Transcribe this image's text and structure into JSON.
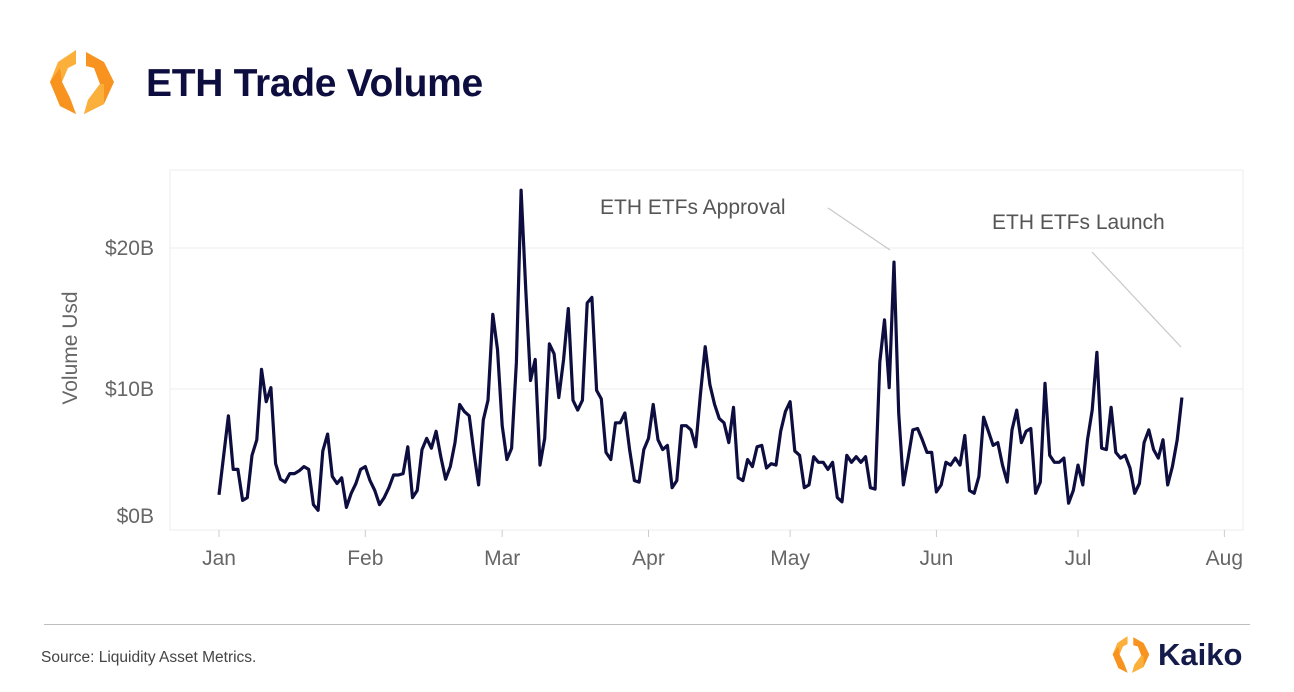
{
  "header": {
    "title": "ETH Trade Volume",
    "logo": "kaiko-hexagon-logo"
  },
  "footer": {
    "source": "Source: Liquidity Asset Metrics.",
    "brand": "Kaiko"
  },
  "colors": {
    "line": "#0d0d3f",
    "title": "#0d0d3f",
    "logo_orange": "#f7931e",
    "logo_amber": "#fbb03b",
    "grid": "#e6e6e6",
    "axis_text": "#666666"
  },
  "chart_data": {
    "type": "line",
    "title": "ETH Trade Volume",
    "xlabel": "",
    "ylabel": "Volume Usd",
    "ylim": [
      0,
      25.5
    ],
    "y_unit": "billion USD",
    "y_ticks": [
      {
        "value": 0,
        "label": "$0B"
      },
      {
        "value": 10,
        "label": "$10B"
      },
      {
        "value": 20,
        "label": "$20B"
      }
    ],
    "x_ticks": [
      "Jan",
      "Feb",
      "Mar",
      "Apr",
      "May",
      "Jun",
      "Jul",
      "Aug"
    ],
    "grid": "horizontal",
    "legend": "none",
    "series": [
      {
        "values_by_month": {
          "Jan": [
            2.5,
            5.3,
            8.1,
            4.3,
            4.3,
            2.1,
            2.3,
            5.3,
            6.4,
            11.4,
            9.1,
            10.1,
            4.7,
            3.6,
            3.4,
            4.0,
            4.0,
            4.2,
            4.5,
            4.3,
            1.8,
            1.4,
            5.6,
            6.8,
            3.8,
            3.3,
            3.7,
            1.6,
            2.6,
            3.3,
            4.3
          ],
          "Feb": [
            4.5,
            3.5,
            2.8,
            1.8,
            2.3,
            3.0,
            3.9,
            3.9,
            4.0,
            5.9,
            2.3,
            2.8,
            5.7,
            6.5,
            5.8,
            7.0,
            5.2,
            3.6,
            4.5,
            6.2,
            8.9,
            8.4,
            8.1,
            5.5,
            3.2,
            7.8,
            9.2,
            15.3,
            12.8
          ],
          "Mar": [
            7.4,
            5.0,
            5.8,
            11.9,
            24.1,
            17.0,
            10.6,
            12.1,
            4.6,
            6.5,
            13.2,
            12.5,
            9.4,
            12.1,
            15.7,
            9.2,
            8.5,
            9.2,
            16.1,
            16.5,
            9.9,
            9.3,
            5.5,
            5.0,
            7.6,
            7.6,
            8.3,
            5.7,
            3.5,
            3.4,
            5.7
          ],
          "Apr": [
            6.5,
            8.9,
            6.4,
            5.7,
            6.0,
            3.0,
            3.5,
            7.4,
            7.4,
            7.1,
            5.9,
            9.6,
            13.0,
            10.3,
            8.9,
            7.9,
            7.6,
            6.2,
            8.7,
            3.7,
            3.5,
            5.0,
            4.5,
            5.9,
            6.0,
            4.4,
            4.7,
            4.6,
            7.0,
            8.4
          ],
          "May": [
            9.1,
            5.6,
            5.3,
            3.0,
            3.2,
            5.2,
            4.8,
            4.8,
            4.3,
            4.8,
            2.3,
            2.0,
            5.3,
            4.8,
            5.2,
            4.8,
            5.2,
            3.0,
            2.9,
            11.9,
            14.9,
            10.1,
            19.0,
            8.3,
            3.2,
            5.1,
            7.1,
            7.2,
            6.4,
            5.5,
            5.5
          ],
          "Jun": [
            2.7,
            3.2,
            4.8,
            4.6,
            5.1,
            4.6,
            6.7,
            2.8,
            2.6,
            3.8,
            8.0,
            7.0,
            6.0,
            6.2,
            4.6,
            3.4,
            7.1,
            8.5,
            6.2,
            7.0,
            7.2,
            2.6,
            3.4,
            10.4,
            5.3,
            4.8,
            4.8,
            5.1,
            1.9,
            2.8
          ],
          "Jul": [
            4.6,
            3.2,
            6.4,
            8.5,
            12.6,
            5.8,
            5.7,
            8.7,
            5.5,
            5.1,
            5.3,
            4.4,
            2.6,
            3.3,
            6.2,
            7.1,
            5.7,
            5.1,
            6.4,
            3.2,
            4.5,
            6.4,
            9.4
          ]
        }
      }
    ],
    "annotations": [
      {
        "text": "ETH ETFs Approval",
        "month": "May",
        "day": 23
      },
      {
        "text": "ETH ETFs Launch",
        "month": "Jul",
        "day": 23
      }
    ]
  }
}
